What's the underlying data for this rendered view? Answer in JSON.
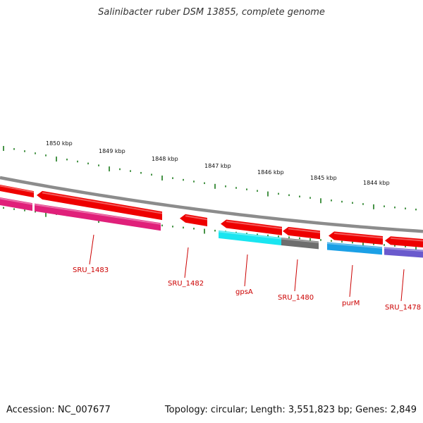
{
  "title": "Salinibacter ruber DSM 13855, complete genome",
  "footer": {
    "accession": "Accession: NC_007677",
    "topology": "Topology: circular; Length: 3,551,823 bp; Genes: 2,849"
  },
  "ruler": {
    "labels": [
      "1850 kbp",
      "1849 kbp",
      "1848 kbp",
      "1847 kbp",
      "1846 kbp",
      "1845 kbp",
      "1844 kbp"
    ]
  },
  "genes": {
    "labels": [
      "SRU_1483",
      "SRU_1482",
      "gpsA",
      "SRU_1480",
      "purM",
      "SRU_1478"
    ]
  },
  "colors": {
    "backbone": "#8c8c8c",
    "gene_forward": "#ee0000",
    "tick": "#1a7a1a",
    "label": "#cc0000",
    "pink": "#e0207a",
    "cyan": "#19e5f0",
    "gray": "#6e6e6e",
    "blue": "#1ba0e6",
    "purple": "#6a5acd"
  }
}
